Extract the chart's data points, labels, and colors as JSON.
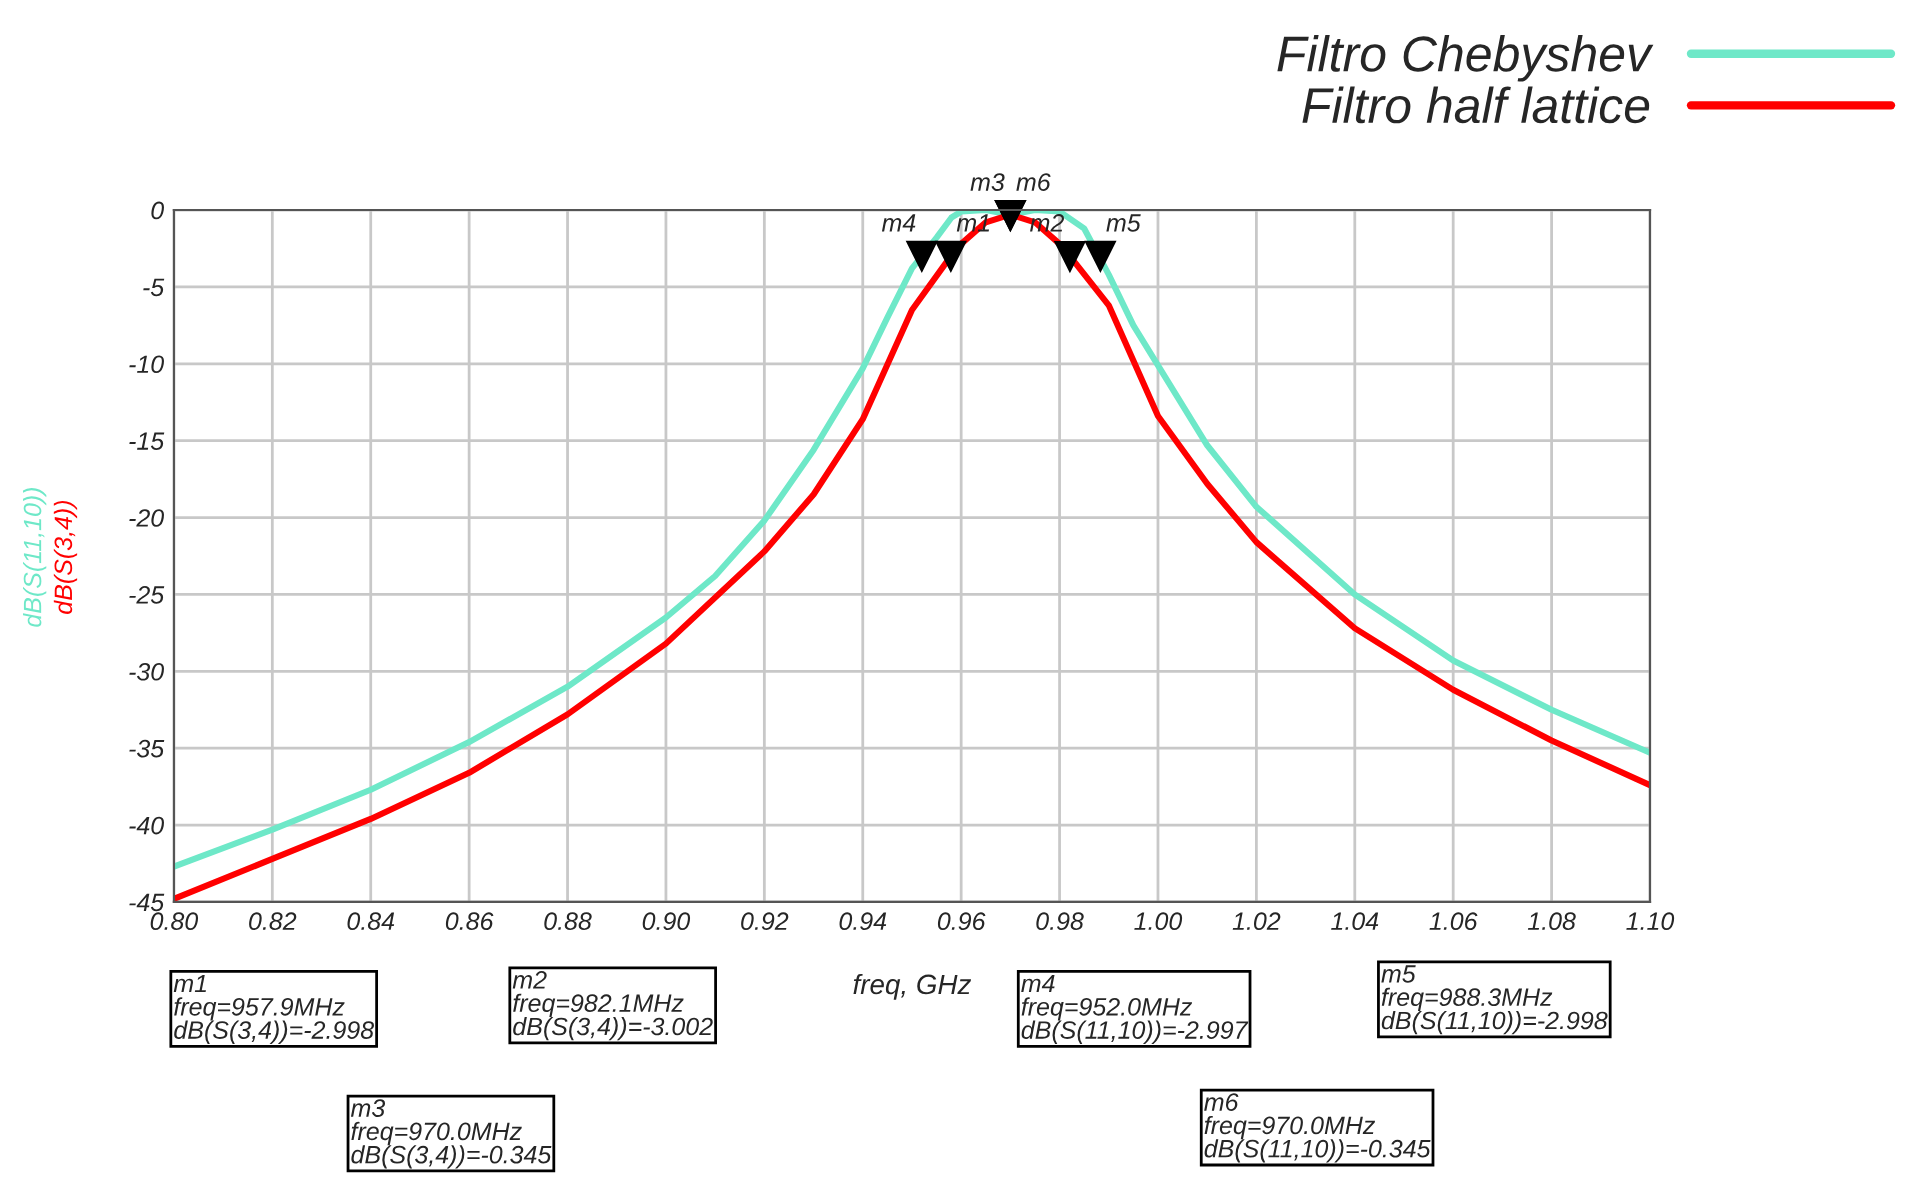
{
  "chart_data": {
    "type": "line",
    "xlabel": "freq, GHz",
    "ylabel": "dB(S(3,4))",
    "y2label": "dB(S(11,10))",
    "xlim": [
      0.8,
      1.1
    ],
    "xticks": [
      {
        "value": 0.8,
        "label": "0.80"
      },
      {
        "value": 0.82,
        "label": "0.82"
      },
      {
        "value": 0.84,
        "label": "0.84"
      },
      {
        "value": 0.86,
        "label": "0.86"
      },
      {
        "value": 0.88,
        "label": "0.88"
      },
      {
        "value": 0.9,
        "label": "0.90"
      },
      {
        "value": 0.92,
        "label": "0.92"
      },
      {
        "value": 0.94,
        "label": "0.94"
      },
      {
        "value": 0.96,
        "label": "0.96"
      },
      {
        "value": 0.98,
        "label": "0.98"
      },
      {
        "value": 1.0,
        "label": "1.00"
      },
      {
        "value": 1.02,
        "label": "1.02"
      },
      {
        "value": 1.04,
        "label": "1.04"
      },
      {
        "value": 1.06,
        "label": "1.06"
      },
      {
        "value": 1.08,
        "label": "1.08"
      },
      {
        "value": 1.1,
        "label": "1.10"
      }
    ],
    "ylim": [
      -45,
      0
    ],
    "yticks": [
      -45,
      -40,
      -35,
      -30,
      -25,
      -20,
      -15,
      -10,
      -5,
      0
    ],
    "grid": true,
    "legend": "top right",
    "line_style": "solid",
    "marker": "none",
    "series": [
      {
        "name": "Filtro Chebyshev",
        "color": "#6ee8c8",
        "x": [
          0.8,
          0.82,
          0.84,
          0.86,
          0.88,
          0.9,
          0.91,
          0.92,
          0.93,
          0.94,
          0.945,
          0.95,
          0.952,
          0.955,
          0.958,
          0.96,
          0.965,
          0.97,
          0.975,
          0.98,
          0.985,
          0.988,
          0.99,
          0.995,
          1.0,
          1.01,
          1.02,
          1.04,
          1.06,
          1.08,
          1.1
        ],
        "values": [
          -42.7,
          -40.3,
          -37.7,
          -34.6,
          -31.0,
          -26.5,
          -23.8,
          -20.2,
          -15.6,
          -10.3,
          -7.0,
          -3.8,
          -3.0,
          -1.8,
          -0.5,
          -0.1,
          0,
          -0.3,
          0,
          -0.1,
          -1.2,
          -3.0,
          -4.2,
          -7.5,
          -10.1,
          -15.3,
          -19.3,
          -25.0,
          -29.3,
          -32.5,
          -35.3
        ]
      },
      {
        "name": "Filtro half lattice",
        "color": "#ff0000",
        "x": [
          0.8,
          0.82,
          0.84,
          0.86,
          0.88,
          0.9,
          0.92,
          0.93,
          0.94,
          0.95,
          0.9579,
          0.96,
          0.965,
          0.97,
          0.975,
          0.98,
          0.9821,
          0.99,
          1.0,
          1.01,
          1.02,
          1.04,
          1.06,
          1.08,
          1.1
        ],
        "values": [
          -44.8,
          -42.2,
          -39.6,
          -36.6,
          -32.8,
          -28.2,
          -22.2,
          -18.5,
          -13.6,
          -6.5,
          -3.0,
          -2.2,
          -0.8,
          -0.3,
          -0.8,
          -2.2,
          -3.0,
          -6.2,
          -13.4,
          -17.8,
          -21.6,
          -27.2,
          -31.2,
          -34.5,
          -37.4
        ]
      }
    ],
    "annotations": [
      {
        "text": "m4",
        "x": 0.952,
        "y": -2.997
      },
      {
        "text": "m1",
        "x": 0.9579,
        "y": -2.998
      },
      {
        "text": "m3",
        "x": 0.97,
        "y": -0.345
      },
      {
        "text": "m6",
        "x": 0.97,
        "y": -0.345
      },
      {
        "text": "m2",
        "x": 0.9821,
        "y": -3.002
      },
      {
        "text": "m5",
        "x": 0.9883,
        "y": -2.998
      },
      "m1\nfreq=957.9MHz\ndB(S(3,4))=-2.998",
      "m2\nfreq=982.1MHz\ndB(S(3,4))=-3.002",
      "m4\nfreq=952.0MHz\ndB(S(11,10))=-2.997",
      "m5\nfreq=988.3MHz\ndB(S(11,10))=-2.998",
      "m3\nfreq=970.0MHz\ndB(S(3,4))=-0.345",
      "m6\nfreq=970.0MHz\ndB(S(11,10))=-0.345"
    ]
  }
}
